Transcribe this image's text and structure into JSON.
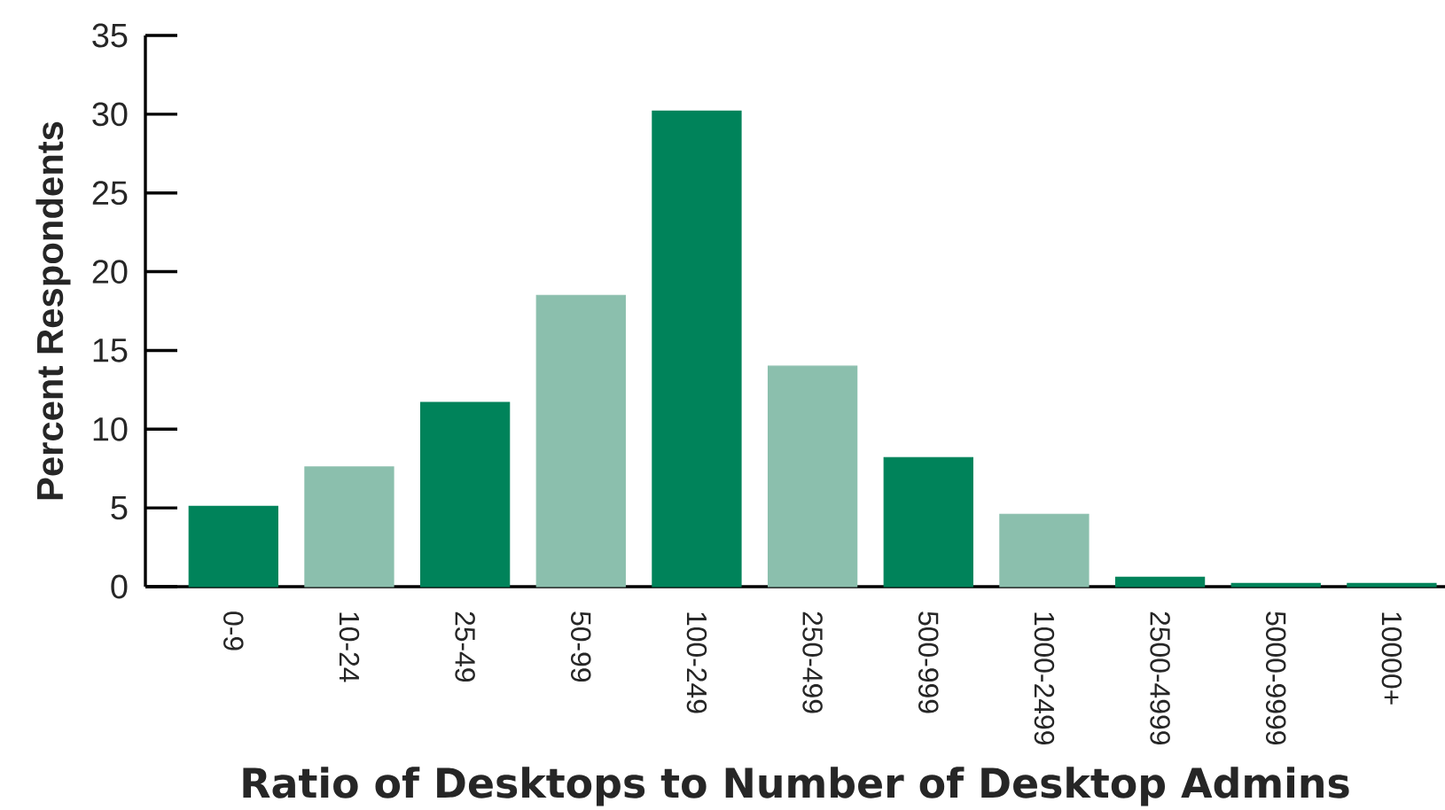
{
  "chart_data": {
    "type": "bar",
    "xlabel": "Ratio of Desktops to Number of Desktop Admins",
    "ylabel": "Percent Respondents",
    "categories": [
      "0-9",
      "10-24",
      "25-49",
      "50-99",
      "100-249",
      "250-499",
      "500-999",
      "1000-2499",
      "2500-4999",
      "5000-9999",
      "10000+"
    ],
    "values": [
      5.1,
      7.6,
      11.7,
      18.5,
      30.2,
      14.0,
      8.2,
      4.6,
      0.6,
      0.2,
      0.2
    ],
    "colors": [
      "#00835a",
      "#8bbfad",
      "#00835a",
      "#8bbfad",
      "#00835a",
      "#8bbfad",
      "#00835a",
      "#8bbfad",
      "#00835a",
      "#00835a",
      "#00835a"
    ],
    "ylim": [
      0,
      35
    ],
    "yticks": [
      0,
      5,
      10,
      15,
      20,
      25,
      30,
      35
    ]
  }
}
